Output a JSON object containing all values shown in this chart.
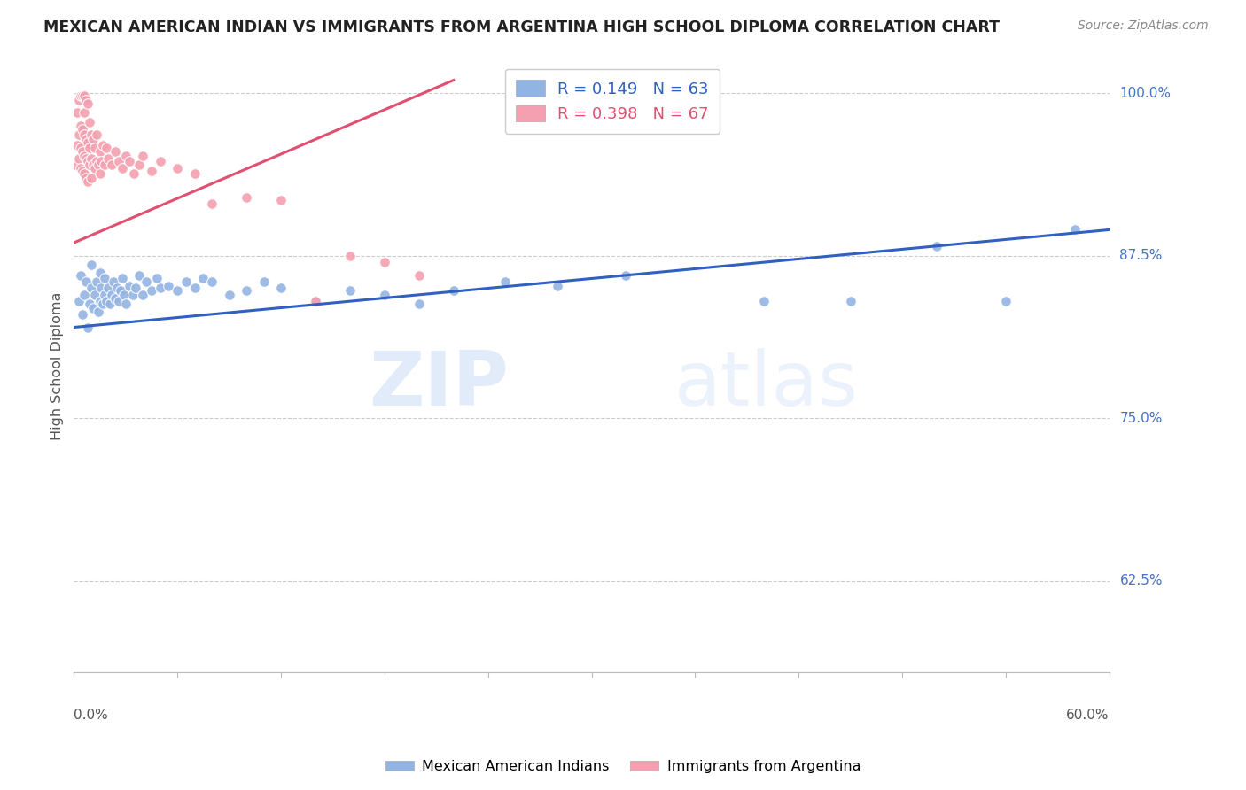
{
  "title": "MEXICAN AMERICAN INDIAN VS IMMIGRANTS FROM ARGENTINA HIGH SCHOOL DIPLOMA CORRELATION CHART",
  "source": "Source: ZipAtlas.com",
  "ylabel": "High School Diploma",
  "ytick_labels": [
    "62.5%",
    "75.0%",
    "87.5%",
    "100.0%"
  ],
  "ytick_values": [
    0.625,
    0.75,
    0.875,
    1.0
  ],
  "xmin": 0.0,
  "xmax": 0.6,
  "ymin": 0.555,
  "ymax": 1.025,
  "legend_blue_r": "R = 0.149",
  "legend_blue_n": "N = 63",
  "legend_pink_r": "R = 0.398",
  "legend_pink_n": "N = 67",
  "blue_color": "#92B4E3",
  "pink_color": "#F4A0B0",
  "blue_line_color": "#3060C0",
  "pink_line_color": "#E05070",
  "watermark_zip": "ZIP",
  "watermark_atlas": "atlas",
  "blue_scatter_x": [
    0.003,
    0.004,
    0.005,
    0.006,
    0.007,
    0.008,
    0.009,
    0.01,
    0.01,
    0.011,
    0.012,
    0.013,
    0.014,
    0.015,
    0.015,
    0.016,
    0.017,
    0.018,
    0.018,
    0.019,
    0.02,
    0.021,
    0.022,
    0.023,
    0.024,
    0.025,
    0.026,
    0.027,
    0.028,
    0.029,
    0.03,
    0.032,
    0.034,
    0.036,
    0.038,
    0.04,
    0.042,
    0.045,
    0.048,
    0.05,
    0.055,
    0.06,
    0.065,
    0.07,
    0.075,
    0.08,
    0.09,
    0.1,
    0.11,
    0.12,
    0.14,
    0.16,
    0.18,
    0.2,
    0.22,
    0.25,
    0.28,
    0.32,
    0.4,
    0.45,
    0.5,
    0.54,
    0.58
  ],
  "blue_scatter_y": [
    0.84,
    0.86,
    0.83,
    0.845,
    0.855,
    0.82,
    0.838,
    0.85,
    0.868,
    0.835,
    0.845,
    0.855,
    0.832,
    0.84,
    0.862,
    0.85,
    0.838,
    0.845,
    0.858,
    0.84,
    0.85,
    0.838,
    0.845,
    0.855,
    0.842,
    0.85,
    0.84,
    0.848,
    0.858,
    0.845,
    0.838,
    0.852,
    0.845,
    0.85,
    0.86,
    0.845,
    0.855,
    0.848,
    0.858,
    0.85,
    0.852,
    0.848,
    0.855,
    0.85,
    0.858,
    0.855,
    0.845,
    0.848,
    0.855,
    0.85,
    0.84,
    0.848,
    0.845,
    0.838,
    0.848,
    0.855,
    0.852,
    0.86,
    0.84,
    0.84,
    0.882,
    0.84,
    0.895
  ],
  "pink_scatter_x": [
    0.001,
    0.002,
    0.002,
    0.003,
    0.003,
    0.003,
    0.004,
    0.004,
    0.004,
    0.004,
    0.005,
    0.005,
    0.005,
    0.005,
    0.006,
    0.006,
    0.006,
    0.006,
    0.006,
    0.007,
    0.007,
    0.007,
    0.007,
    0.008,
    0.008,
    0.008,
    0.008,
    0.009,
    0.009,
    0.009,
    0.01,
    0.01,
    0.01,
    0.011,
    0.011,
    0.012,
    0.012,
    0.013,
    0.013,
    0.014,
    0.015,
    0.015,
    0.016,
    0.017,
    0.018,
    0.019,
    0.02,
    0.022,
    0.024,
    0.026,
    0.028,
    0.03,
    0.032,
    0.035,
    0.038,
    0.04,
    0.045,
    0.05,
    0.06,
    0.07,
    0.08,
    0.1,
    0.12,
    0.14,
    0.16,
    0.18,
    0.2
  ],
  "pink_scatter_y": [
    0.945,
    0.96,
    0.985,
    0.95,
    0.968,
    0.995,
    0.942,
    0.958,
    0.975,
    0.998,
    0.94,
    0.955,
    0.972,
    0.998,
    0.938,
    0.952,
    0.968,
    0.985,
    0.998,
    0.935,
    0.95,
    0.965,
    0.995,
    0.932,
    0.948,
    0.962,
    0.992,
    0.945,
    0.958,
    0.978,
    0.935,
    0.95,
    0.968,
    0.945,
    0.965,
    0.942,
    0.958,
    0.948,
    0.968,
    0.945,
    0.938,
    0.955,
    0.948,
    0.96,
    0.945,
    0.958,
    0.95,
    0.945,
    0.955,
    0.948,
    0.942,
    0.952,
    0.948,
    0.938,
    0.945,
    0.952,
    0.94,
    0.948,
    0.942,
    0.938,
    0.915,
    0.92,
    0.918,
    0.84,
    0.875,
    0.87,
    0.86
  ],
  "blue_trend_x": [
    0.0,
    0.6
  ],
  "blue_trend_y": [
    0.82,
    0.895
  ],
  "pink_trend_x": [
    0.0,
    0.22
  ],
  "pink_trend_y": [
    0.885,
    1.01
  ]
}
